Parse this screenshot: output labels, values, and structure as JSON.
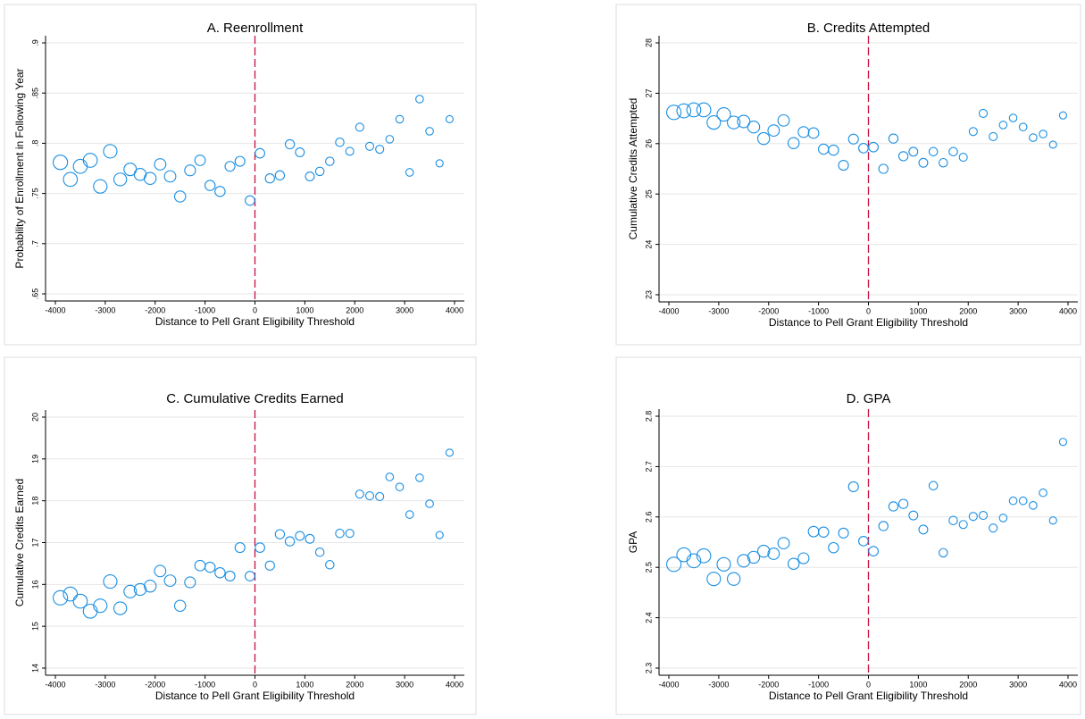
{
  "chart_data": [
    {
      "type": "scatter",
      "title": "A. Reenrollment",
      "xlabel": "Distance to Pell Grant Eligibility Threshold",
      "ylabel": "Probability of Enrollment in Following Year",
      "x": [
        -3900,
        -3700,
        -3500,
        -3300,
        -3100,
        -2900,
        -2700,
        -2500,
        -2300,
        -2100,
        -1900,
        -1700,
        -1500,
        -1300,
        -1100,
        -900,
        -700,
        -500,
        -300,
        -100,
        100,
        300,
        500,
        700,
        900,
        1100,
        1300,
        1500,
        1700,
        1900,
        2100,
        2300,
        2500,
        2700,
        2900,
        3100,
        3300,
        3500,
        3700,
        3900
      ],
      "values": [
        0.781,
        0.764,
        0.777,
        0.783,
        0.757,
        0.792,
        0.764,
        0.774,
        0.769,
        0.765,
        0.779,
        0.767,
        0.747,
        0.773,
        0.783,
        0.758,
        0.752,
        0.777,
        0.782,
        0.743,
        0.79,
        0.765,
        0.768,
        0.799,
        0.791,
        0.767,
        0.772,
        0.782,
        0.801,
        0.792,
        0.816,
        0.797,
        0.794,
        0.804,
        0.824,
        0.771,
        0.844,
        0.812,
        0.78,
        0.824
      ],
      "sizes": [
        3.2,
        3.0,
        3.0,
        3.0,
        2.8,
        2.8,
        2.5,
        2.4,
        2.2,
        2.2,
        2.0,
        2.0,
        1.9,
        1.8,
        1.7,
        1.6,
        1.6,
        1.5,
        1.5,
        1.4,
        1.4,
        1.3,
        1.3,
        1.3,
        1.2,
        1.2,
        1.1,
        1.1,
        1.1,
        1.0,
        1.0,
        1.0,
        1.0,
        0.9,
        0.9,
        0.9,
        0.9,
        0.9,
        0.8,
        0.8
      ],
      "color": "#1a8fe3",
      "vline": 0,
      "vline_color": "#c8103e",
      "xlim": [
        -4000,
        4000
      ],
      "xticks": [
        -4000,
        -3000,
        -2000,
        -1000,
        0,
        1000,
        2000,
        3000,
        4000
      ],
      "ylim": [
        0.65,
        0.9
      ],
      "yticks": [
        {
          "value": 0.65,
          "label": ".65"
        },
        {
          "value": 0.7,
          "label": ".7"
        },
        {
          "value": 0.75,
          "label": ".75"
        },
        {
          "value": 0.8,
          "label": ".8"
        },
        {
          "value": 0.85,
          "label": ".85"
        },
        {
          "value": 0.9,
          "label": ".9"
        }
      ],
      "grid": true
    },
    {
      "type": "scatter",
      "title": "B. Credits Attempted",
      "xlabel": "Distance to Pell Grant Eligibility Threshold",
      "ylabel": "Cumulative Credits Attempted",
      "x": [
        -3900,
        -3700,
        -3500,
        -3300,
        -3100,
        -2900,
        -2700,
        -2500,
        -2300,
        -2100,
        -1900,
        -1700,
        -1500,
        -1300,
        -1100,
        -900,
        -700,
        -500,
        -300,
        -100,
        100,
        300,
        500,
        700,
        900,
        1100,
        1300,
        1500,
        1700,
        1900,
        2100,
        2300,
        2500,
        2700,
        2900,
        3100,
        3300,
        3500,
        3700,
        3900
      ],
      "values": [
        26.62,
        26.65,
        26.67,
        26.67,
        26.42,
        26.58,
        26.42,
        26.44,
        26.33,
        26.1,
        26.26,
        26.46,
        26.01,
        26.23,
        26.21,
        25.89,
        25.87,
        25.57,
        26.09,
        25.91,
        25.93,
        25.5,
        26.1,
        25.75,
        25.84,
        25.62,
        25.84,
        25.62,
        25.84,
        25.73,
        26.24,
        26.6,
        26.14,
        26.37,
        26.51,
        26.33,
        26.12,
        26.19,
        25.98,
        26.56
      ],
      "sizes": [
        3.2,
        3.0,
        3.0,
        3.0,
        2.8,
        2.8,
        2.5,
        2.4,
        2.2,
        2.2,
        2.0,
        2.0,
        1.9,
        1.8,
        1.7,
        1.6,
        1.6,
        1.5,
        1.5,
        1.4,
        1.4,
        1.3,
        1.3,
        1.3,
        1.2,
        1.2,
        1.1,
        1.1,
        1.1,
        1.0,
        1.0,
        1.0,
        1.0,
        0.9,
        0.9,
        0.9,
        0.9,
        0.9,
        0.8,
        0.8
      ],
      "color": "#1a8fe3",
      "vline": 0,
      "vline_color": "#c8103e",
      "xlim": [
        -4000,
        4000
      ],
      "xticks": [
        -4000,
        -3000,
        -2000,
        -1000,
        0,
        1000,
        2000,
        3000,
        4000
      ],
      "ylim": [
        23,
        28
      ],
      "yticks": [
        23,
        24,
        25,
        26,
        27,
        28
      ],
      "grid": true
    },
    {
      "type": "scatter",
      "title": "C. Cumulative Credits Earned",
      "xlabel": "Distance to Pell Grant Eligibility Threshold",
      "ylabel": "Cumulative Credits Earned",
      "x": [
        -3900,
        -3700,
        -3500,
        -3300,
        -3100,
        -2900,
        -2700,
        -2500,
        -2300,
        -2100,
        -1900,
        -1700,
        -1500,
        -1300,
        -1100,
        -900,
        -700,
        -500,
        -300,
        -100,
        100,
        300,
        500,
        700,
        900,
        1100,
        1300,
        1500,
        1700,
        1900,
        2100,
        2300,
        2500,
        2700,
        2900,
        3100,
        3300,
        3500,
        3700,
        3900
      ],
      "values": [
        15.68,
        15.77,
        15.6,
        15.36,
        15.49,
        16.07,
        15.43,
        15.83,
        15.88,
        15.96,
        16.32,
        16.09,
        15.49,
        16.05,
        16.45,
        16.41,
        16.28,
        16.2,
        16.88,
        16.2,
        16.88,
        16.45,
        17.2,
        17.03,
        17.16,
        17.09,
        16.77,
        16.47,
        17.22,
        17.22,
        18.16,
        18.12,
        18.1,
        18.57,
        18.33,
        17.67,
        18.55,
        17.93,
        17.18,
        19.15
      ],
      "sizes": [
        3.2,
        3.0,
        3.0,
        3.0,
        2.8,
        2.8,
        2.5,
        2.4,
        2.2,
        2.2,
        2.0,
        2.0,
        1.9,
        1.8,
        1.7,
        1.6,
        1.6,
        1.5,
        1.5,
        1.4,
        1.4,
        1.3,
        1.3,
        1.3,
        1.2,
        1.2,
        1.1,
        1.1,
        1.1,
        1.0,
        1.0,
        1.0,
        1.0,
        0.9,
        0.9,
        0.9,
        0.9,
        0.9,
        0.8,
        0.8
      ],
      "color": "#1a8fe3",
      "vline": 0,
      "vline_color": "#c8103e",
      "xlim": [
        -4000,
        4000
      ],
      "xticks": [
        -4000,
        -3000,
        -2000,
        -1000,
        0,
        1000,
        2000,
        3000,
        4000
      ],
      "ylim": [
        14,
        20
      ],
      "yticks": [
        14,
        15,
        16,
        17,
        18,
        19,
        20
      ],
      "grid": true
    },
    {
      "type": "scatter",
      "title": "D. GPA",
      "xlabel": "Distance to Pell Grant Eligibility Threshold",
      "ylabel": "GPA",
      "x": [
        -3900,
        -3700,
        -3500,
        -3300,
        -3100,
        -2900,
        -2700,
        -2500,
        -2300,
        -2100,
        -1900,
        -1700,
        -1500,
        -1300,
        -1100,
        -900,
        -700,
        -500,
        -300,
        -100,
        100,
        300,
        500,
        700,
        900,
        1100,
        1300,
        1500,
        1700,
        1900,
        2100,
        2300,
        2500,
        2700,
        2900,
        3100,
        3300,
        3500,
        3700,
        3900
      ],
      "values": [
        2.506,
        2.525,
        2.513,
        2.523,
        2.477,
        2.506,
        2.477,
        2.513,
        2.52,
        2.532,
        2.527,
        2.548,
        2.507,
        2.518,
        2.571,
        2.57,
        2.539,
        2.568,
        2.66,
        2.552,
        2.532,
        2.582,
        2.621,
        2.626,
        2.603,
        2.575,
        2.662,
        2.529,
        2.593,
        2.585,
        2.601,
        2.603,
        2.578,
        2.598,
        2.632,
        2.632,
        2.623,
        2.648,
        2.593,
        2.749
      ],
      "sizes": [
        3.2,
        3.0,
        3.0,
        3.0,
        2.8,
        2.8,
        2.5,
        2.4,
        2.2,
        2.2,
        2.0,
        2.0,
        1.9,
        1.8,
        1.7,
        1.6,
        1.6,
        1.5,
        1.5,
        1.4,
        1.4,
        1.3,
        1.3,
        1.3,
        1.2,
        1.2,
        1.1,
        1.1,
        1.1,
        1.0,
        1.0,
        1.0,
        1.0,
        0.9,
        0.9,
        0.9,
        0.9,
        0.9,
        0.8,
        0.8
      ],
      "color": "#1a8fe3",
      "vline": 0,
      "vline_color": "#c8103e",
      "xlim": [
        -4000,
        4000
      ],
      "xticks": [
        -4000,
        -3000,
        -2000,
        -1000,
        0,
        1000,
        2000,
        3000,
        4000
      ],
      "ylim": [
        2.3,
        2.8
      ],
      "yticks": [
        2.3,
        2.4,
        2.5,
        2.6,
        2.7,
        2.8
      ],
      "grid": true
    }
  ]
}
